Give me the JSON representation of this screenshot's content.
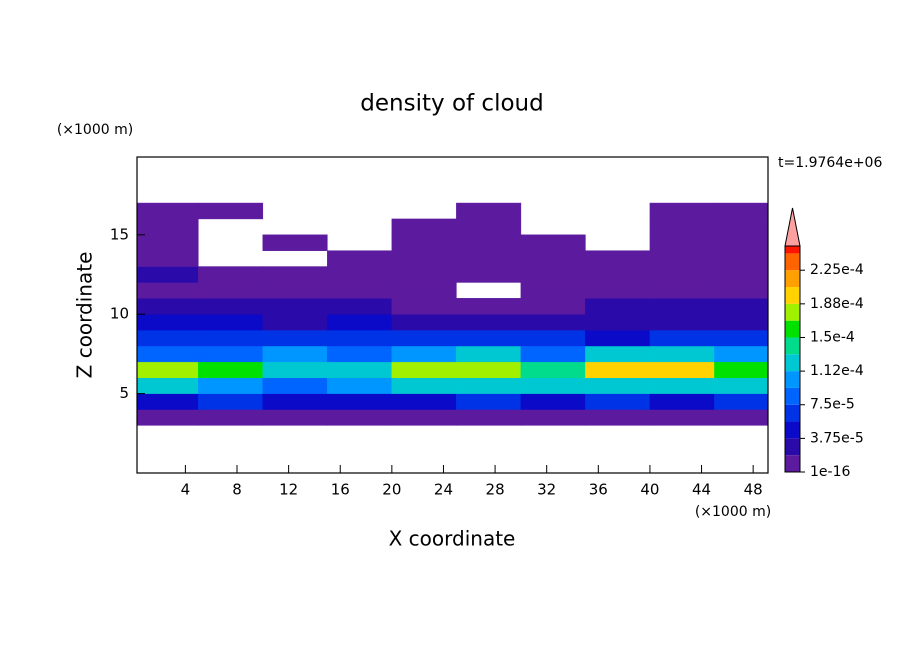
{
  "chart_data": {
    "type": "contour",
    "title": "density of cloud",
    "x_label": "X coordinate",
    "y_label": "Z coordinate",
    "x_unit": "(×1000 m)",
    "y_unit": "(×1000 m)",
    "time_label": "t=1.9764e+06",
    "xlim": [
      0.25,
      49.15
    ],
    "ylim": [
      0,
      19.9
    ],
    "xticks": [
      4,
      8,
      12,
      16,
      20,
      24,
      28,
      32,
      36,
      40,
      44,
      48
    ],
    "yticks": [
      5,
      10,
      15
    ],
    "x": [
      2.5,
      7.5,
      12.5,
      17.5,
      22.5,
      27.5,
      32.5,
      37.5,
      42.5,
      47.5
    ],
    "z": [
      3.5,
      4.5,
      5.5,
      6.5,
      7.5,
      8.5,
      9.5,
      10.5,
      11.5,
      12.5,
      13.5,
      14.5,
      15.5,
      16.5
    ],
    "values": [
      [
        1.2e-05,
        1.2e-05,
        1e-05,
        1.2e-05,
        1.2e-05,
        1e-05,
        1.2e-05,
        1.2e-05,
        1.2e-05,
        1.2e-05
      ],
      [
        5e-05,
        6e-05,
        4e-05,
        5e-05,
        5e-05,
        6e-05,
        5e-05,
        6e-05,
        5e-05,
        6e-05
      ],
      [
        0.00012,
        0.0001,
        9e-05,
        9.5e-05,
        0.00012,
        0.00013,
        0.00012,
        0.00012,
        0.00013,
        0.00012
      ],
      [
        0.00017,
        0.00015,
        0.00013,
        0.00012,
        0.00017,
        0.00018,
        0.00014,
        0.00019,
        0.00019,
        0.00016
      ],
      [
        9e-05,
        8e-05,
        0.0001,
        9e-05,
        0.00011,
        0.00013,
        9e-05,
        0.00012,
        0.00012,
        0.0001
      ],
      [
        6e-05,
        6e-05,
        6e-05,
        6e-05,
        6e-05,
        6e-05,
        6e-05,
        5e-05,
        6e-05,
        6e-05
      ],
      [
        4e-05,
        4e-05,
        3.5e-05,
        4e-05,
        3e-05,
        3e-05,
        3e-05,
        3e-05,
        3e-05,
        3e-05
      ],
      [
        2e-05,
        2.5e-05,
        2e-05,
        2e-05,
        1.5e-05,
        1e-05,
        1e-05,
        2e-05,
        2e-05,
        2e-05
      ],
      [
        1.5e-05,
        1.5e-05,
        1e-05,
        1e-05,
        5e-06,
        null,
        5e-06,
        5e-06,
        1e-05,
        1.5e-05
      ],
      [
        2e-05,
        1e-05,
        1e-05,
        5e-06,
        5e-06,
        5e-06,
        5e-06,
        5e-06,
        5e-06,
        1e-05
      ],
      [
        1e-05,
        null,
        null,
        5e-06,
        5e-06,
        5e-06,
        5e-06,
        5e-06,
        5e-06,
        5e-06
      ],
      [
        5e-06,
        null,
        5e-06,
        null,
        5e-06,
        5e-06,
        5e-06,
        null,
        5e-06,
        5e-06
      ],
      [
        5e-06,
        null,
        null,
        null,
        5e-06,
        5e-06,
        null,
        null,
        5e-06,
        5e-06
      ],
      [
        5e-06,
        5e-06,
        null,
        null,
        null,
        5e-06,
        null,
        null,
        5e-06,
        5e-06
      ]
    ],
    "levels": [
      1e-16,
      1.875e-05,
      3.75e-05,
      5.625e-05,
      7.5e-05,
      9.375e-05,
      0.0001125,
      0.00013125,
      0.00015,
      0.00016875,
      0.0001875,
      0.00020625,
      0.000225,
      0.00024375
    ],
    "colors": [
      "#5c1a9e",
      "#2a0aa8",
      "#0a0ac8",
      "#0032e6",
      "#0064ff",
      "#0096ff",
      "#00c8d2",
      "#00dc8c",
      "#00e100",
      "#a0f000",
      "#ffd200",
      "#ffa000",
      "#ff6400",
      "#ff1400"
    ],
    "extend_color": "#ffa0a0",
    "clim": [
      1e-16,
      0.000252
    ],
    "cticks": [
      1e-16,
      {
        "value": 3.75e-05,
        "label": "3.75e-5"
      },
      {
        "value": 7.5e-05,
        "label": "7.5e-5"
      },
      {
        "value": 0.0001125,
        "label": "1.12e-4"
      },
      {
        "value": 0.00015,
        "label": "1.5e-4"
      },
      {
        "value": 0.0001875,
        "label": "1.88e-4"
      },
      {
        "value": 0.000225,
        "label": "2.25e-4"
      }
    ]
  }
}
